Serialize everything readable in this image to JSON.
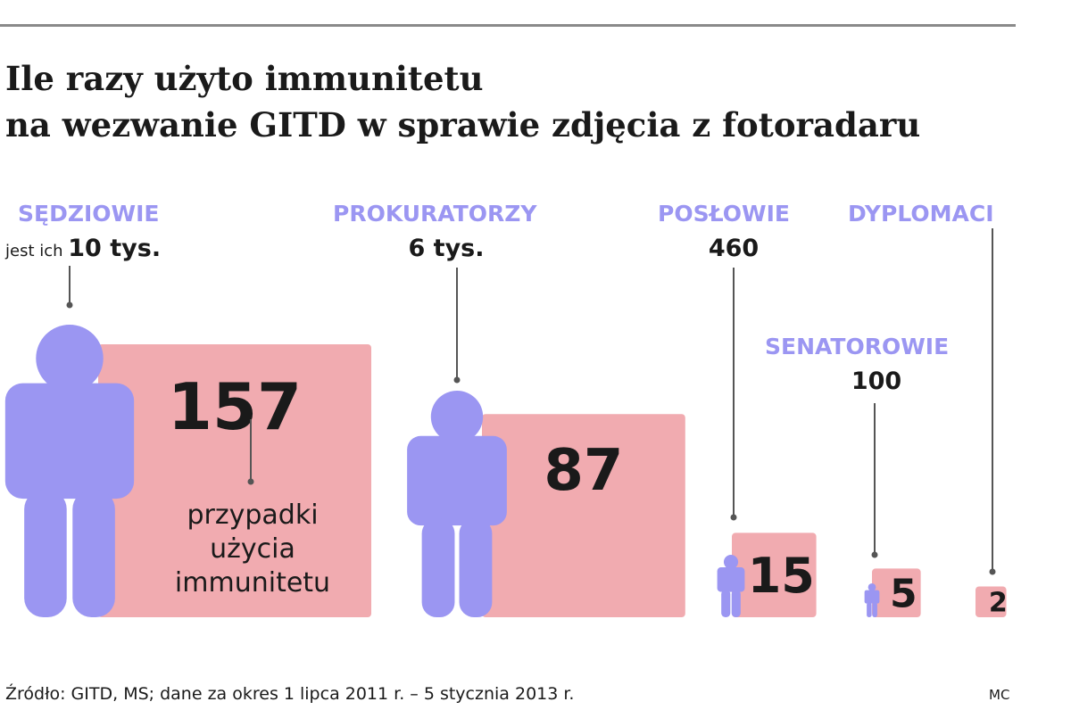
{
  "title_lines": [
    "Ile razy użyto immunitetu",
    "na wezwanie GITD w sprawie zdjęcia z fotoradaru"
  ],
  "source": "Źródło: GITD, MS; dane za okres 1 lipca 2011 r. – 5 stycznia 2013 r.",
  "credit": "MC",
  "colors": {
    "person": "#9b96f2",
    "box": "#f1abb0",
    "label": "#9b96f2",
    "text": "#1a1a1a",
    "leader": "#555555"
  },
  "chart_data": {
    "type": "bar",
    "title": "Ile razy użyto immunitetu na wezwanie GITD w sprawie zdjęcia z fotoradaru",
    "categories": [
      "SĘDZIOWIE",
      "PROKURATORZY",
      "POSŁOWIE",
      "SENATOROWIE",
      "DYPLOMACI"
    ],
    "series": [
      {
        "name": "przypadki użycia immunitetu",
        "values": [
          157,
          87,
          15,
          5,
          2
        ]
      }
    ],
    "group_size_labels": [
      "10 tys.",
      "6 tys.",
      "460",
      "100",
      ""
    ],
    "group_size_values": [
      10000,
      6000,
      460,
      100,
      null
    ],
    "size_prefix": "jest ich",
    "annotation": "przypadki\nużycia\nimmunitetu"
  }
}
